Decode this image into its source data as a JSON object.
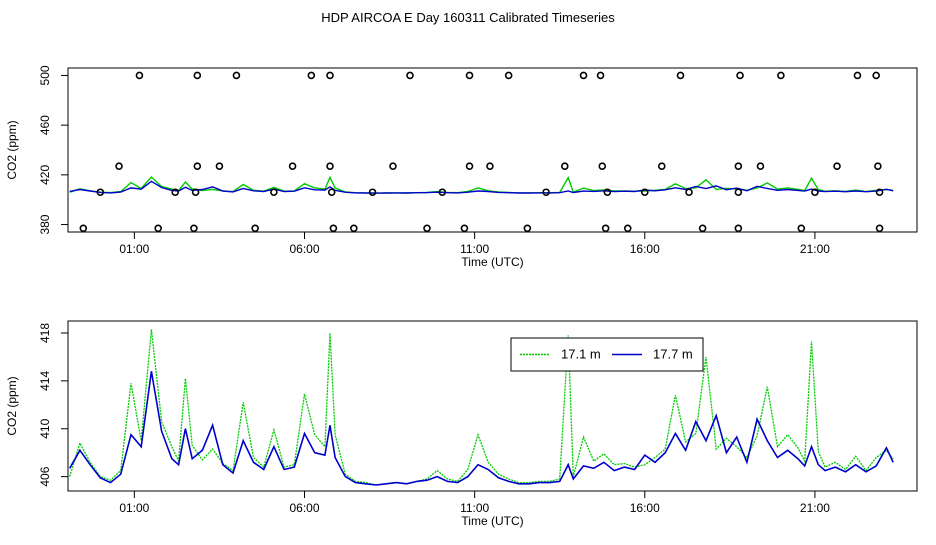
{
  "title": "HDP AIRCOA E  Day 160311  Calibrated Timeseries",
  "colors": {
    "green": "#00cc00",
    "blue": "#0000cc",
    "axis": "#000000",
    "background": "#ffffff"
  },
  "chart_data": [
    {
      "type": "scatter",
      "panel": "top",
      "xlabel": "Time (UTC)",
      "ylabel": "CO2 (ppm)",
      "xlim": [
        -0.95,
        24.0
      ],
      "ylim": [
        374,
        506
      ],
      "x_ticks": [
        1,
        6,
        11,
        16,
        21
      ],
      "x_tick_labels": [
        "01:00",
        "06:00",
        "11:00",
        "16:00",
        "21:00"
      ],
      "y_ticks": [
        380,
        420,
        460,
        500
      ],
      "y_tick_labels": [
        "380",
        "420",
        "460",
        "500"
      ],
      "points": [
        {
          "x": 1.15,
          "y": 500
        },
        {
          "x": 2.85,
          "y": 500
        },
        {
          "x": 4.0,
          "y": 500
        },
        {
          "x": 6.2,
          "y": 500
        },
        {
          "x": 6.75,
          "y": 500
        },
        {
          "x": 9.1,
          "y": 500
        },
        {
          "x": 10.85,
          "y": 500
        },
        {
          "x": 12.0,
          "y": 500
        },
        {
          "x": 14.2,
          "y": 500
        },
        {
          "x": 14.7,
          "y": 500
        },
        {
          "x": 17.05,
          "y": 500
        },
        {
          "x": 18.8,
          "y": 500
        },
        {
          "x": 20.0,
          "y": 500
        },
        {
          "x": 22.25,
          "y": 500
        },
        {
          "x": 22.8,
          "y": 500
        },
        {
          "x": 0.55,
          "y": 427
        },
        {
          "x": 2.85,
          "y": 427
        },
        {
          "x": 3.5,
          "y": 427
        },
        {
          "x": 5.65,
          "y": 427
        },
        {
          "x": 6.75,
          "y": 427
        },
        {
          "x": 8.6,
          "y": 427
        },
        {
          "x": 10.85,
          "y": 427
        },
        {
          "x": 11.45,
          "y": 427
        },
        {
          "x": 13.65,
          "y": 427
        },
        {
          "x": 14.75,
          "y": 427
        },
        {
          "x": 16.5,
          "y": 427
        },
        {
          "x": 18.75,
          "y": 427
        },
        {
          "x": 19.4,
          "y": 427
        },
        {
          "x": 21.65,
          "y": 427
        },
        {
          "x": 22.85,
          "y": 427
        },
        {
          "x": 0.0,
          "y": 406
        },
        {
          "x": 2.2,
          "y": 406
        },
        {
          "x": 2.8,
          "y": 406
        },
        {
          "x": 5.1,
          "y": 406
        },
        {
          "x": 6.8,
          "y": 406
        },
        {
          "x": 8.0,
          "y": 406
        },
        {
          "x": 10.05,
          "y": 406
        },
        {
          "x": 13.1,
          "y": 406
        },
        {
          "x": 14.9,
          "y": 406
        },
        {
          "x": 16.0,
          "y": 406
        },
        {
          "x": 17.3,
          "y": 406
        },
        {
          "x": 18.75,
          "y": 406
        },
        {
          "x": 21.0,
          "y": 406
        },
        {
          "x": 22.9,
          "y": 406
        },
        {
          "x": -0.5,
          "y": 377
        },
        {
          "x": 1.7,
          "y": 377
        },
        {
          "x": 2.75,
          "y": 377
        },
        {
          "x": 4.55,
          "y": 377
        },
        {
          "x": 6.85,
          "y": 377
        },
        {
          "x": 7.45,
          "y": 377
        },
        {
          "x": 9.6,
          "y": 377
        },
        {
          "x": 10.7,
          "y": 377
        },
        {
          "x": 12.55,
          "y": 377
        },
        {
          "x": 14.85,
          "y": 377
        },
        {
          "x": 15.5,
          "y": 377
        },
        {
          "x": 17.7,
          "y": 377
        },
        {
          "x": 18.75,
          "y": 377
        },
        {
          "x": 20.6,
          "y": 377
        },
        {
          "x": 22.9,
          "y": 377
        }
      ]
    },
    {
      "type": "line",
      "panel": "bottom",
      "xlabel": "Time (UTC)",
      "ylabel": "CO2 (ppm)",
      "xlim": [
        -0.95,
        24.0
      ],
      "ylim": [
        404.8,
        419.0
      ],
      "x_ticks": [
        1,
        6,
        11,
        16,
        21
      ],
      "x_tick_labels": [
        "01:00",
        "06:00",
        "11:00",
        "16:00",
        "21:00"
      ],
      "y_ticks": [
        406,
        410,
        414,
        418
      ],
      "y_tick_labels": [
        "406",
        "410",
        "414",
        "418"
      ],
      "legend": {
        "position": "top-right",
        "entries": [
          "17.1 m",
          "17.7 m"
        ]
      },
      "series": [
        {
          "name": "17.1 m",
          "color": "#00cc00",
          "x": [
            -0.9,
            -0.6,
            -0.3,
            0.0,
            0.3,
            0.6,
            0.9,
            1.2,
            1.5,
            1.8,
            2.1,
            2.3,
            2.5,
            2.7,
            3.0,
            3.3,
            3.6,
            3.9,
            4.2,
            4.5,
            4.8,
            5.1,
            5.4,
            5.7,
            6.0,
            6.3,
            6.6,
            6.75,
            6.9,
            7.2,
            7.5,
            7.8,
            8.1,
            8.4,
            8.7,
            9.0,
            9.3,
            9.6,
            9.9,
            10.2,
            10.5,
            10.8,
            11.1,
            11.4,
            11.7,
            12.0,
            12.3,
            12.6,
            12.9,
            13.2,
            13.5,
            13.75,
            13.9,
            14.2,
            14.5,
            14.8,
            15.1,
            15.4,
            15.7,
            16.0,
            16.3,
            16.6,
            16.9,
            17.2,
            17.5,
            17.8,
            18.1,
            18.4,
            18.7,
            19.0,
            19.3,
            19.6,
            19.9,
            20.2,
            20.5,
            20.7,
            20.9,
            21.1,
            21.3,
            21.6,
            21.9,
            22.2,
            22.5,
            22.8,
            23.1,
            23.3
          ],
          "values": [
            406.0,
            408.8,
            407.2,
            406.0,
            405.7,
            406.5,
            413.8,
            409.0,
            418.3,
            410.6,
            408.5,
            407.3,
            414.2,
            408.6,
            407.4,
            408.3,
            407.1,
            406.5,
            412.2,
            407.6,
            406.8,
            409.9,
            406.8,
            407.0,
            412.9,
            409.5,
            408.5,
            418.0,
            409.5,
            406.2,
            405.6,
            405.5,
            405.3,
            405.4,
            405.5,
            405.4,
            405.6,
            405.8,
            406.5,
            405.8,
            405.6,
            406.6,
            409.5,
            407.2,
            406.2,
            405.8,
            405.5,
            405.5,
            405.6,
            405.6,
            405.8,
            417.8,
            406.0,
            409.3,
            407.3,
            407.9,
            407.0,
            407.1,
            406.8,
            407.0,
            407.6,
            408.3,
            412.8,
            408.9,
            409.6,
            416.0,
            408.3,
            409.2,
            408.5,
            407.6,
            409.4,
            413.5,
            408.5,
            409.5,
            408.4,
            407.3,
            417.3,
            408.1,
            406.8,
            407.2,
            406.6,
            407.7,
            406.5,
            407.6,
            408.2,
            407.5
          ]
        },
        {
          "name": "17.7 m",
          "color": "#0000cc",
          "x": [
            -0.9,
            -0.6,
            -0.3,
            0.0,
            0.3,
            0.6,
            0.9,
            1.2,
            1.5,
            1.8,
            2.1,
            2.3,
            2.5,
            2.7,
            3.0,
            3.3,
            3.6,
            3.9,
            4.2,
            4.5,
            4.8,
            5.1,
            5.4,
            5.7,
            6.0,
            6.3,
            6.6,
            6.75,
            6.9,
            7.2,
            7.5,
            7.8,
            8.1,
            8.4,
            8.7,
            9.0,
            9.3,
            9.6,
            9.9,
            10.2,
            10.5,
            10.8,
            11.1,
            11.4,
            11.7,
            12.0,
            12.3,
            12.6,
            12.9,
            13.2,
            13.5,
            13.75,
            13.9,
            14.2,
            14.5,
            14.8,
            15.1,
            15.4,
            15.7,
            16.0,
            16.3,
            16.6,
            16.9,
            17.2,
            17.5,
            17.8,
            18.1,
            18.4,
            18.7,
            19.0,
            19.3,
            19.6,
            19.9,
            20.2,
            20.5,
            20.7,
            20.9,
            21.1,
            21.3,
            21.6,
            21.9,
            22.2,
            22.5,
            22.8,
            23.1,
            23.3
          ],
          "values": [
            406.7,
            408.2,
            407.0,
            405.9,
            405.5,
            406.2,
            409.5,
            408.5,
            414.8,
            409.8,
            407.5,
            407.0,
            410.0,
            407.5,
            408.2,
            410.3,
            407.0,
            406.3,
            409.0,
            407.2,
            406.6,
            408.5,
            406.6,
            406.8,
            409.6,
            408.0,
            407.8,
            410.3,
            407.6,
            406.0,
            405.5,
            405.4,
            405.3,
            405.4,
            405.5,
            405.4,
            405.6,
            405.7,
            406.0,
            405.6,
            405.5,
            406.0,
            407.0,
            406.6,
            405.9,
            405.6,
            405.4,
            405.4,
            405.5,
            405.5,
            405.6,
            407.0,
            405.8,
            406.9,
            406.7,
            407.2,
            406.5,
            406.8,
            406.6,
            407.8,
            407.2,
            408.0,
            409.6,
            408.2,
            410.6,
            409.0,
            411.1,
            408.0,
            409.3,
            407.2,
            410.8,
            409.0,
            407.6,
            408.2,
            407.5,
            406.9,
            408.5,
            407.0,
            406.5,
            406.8,
            406.4,
            407.0,
            406.4,
            406.9,
            408.4,
            407.2
          ]
        }
      ]
    }
  ]
}
